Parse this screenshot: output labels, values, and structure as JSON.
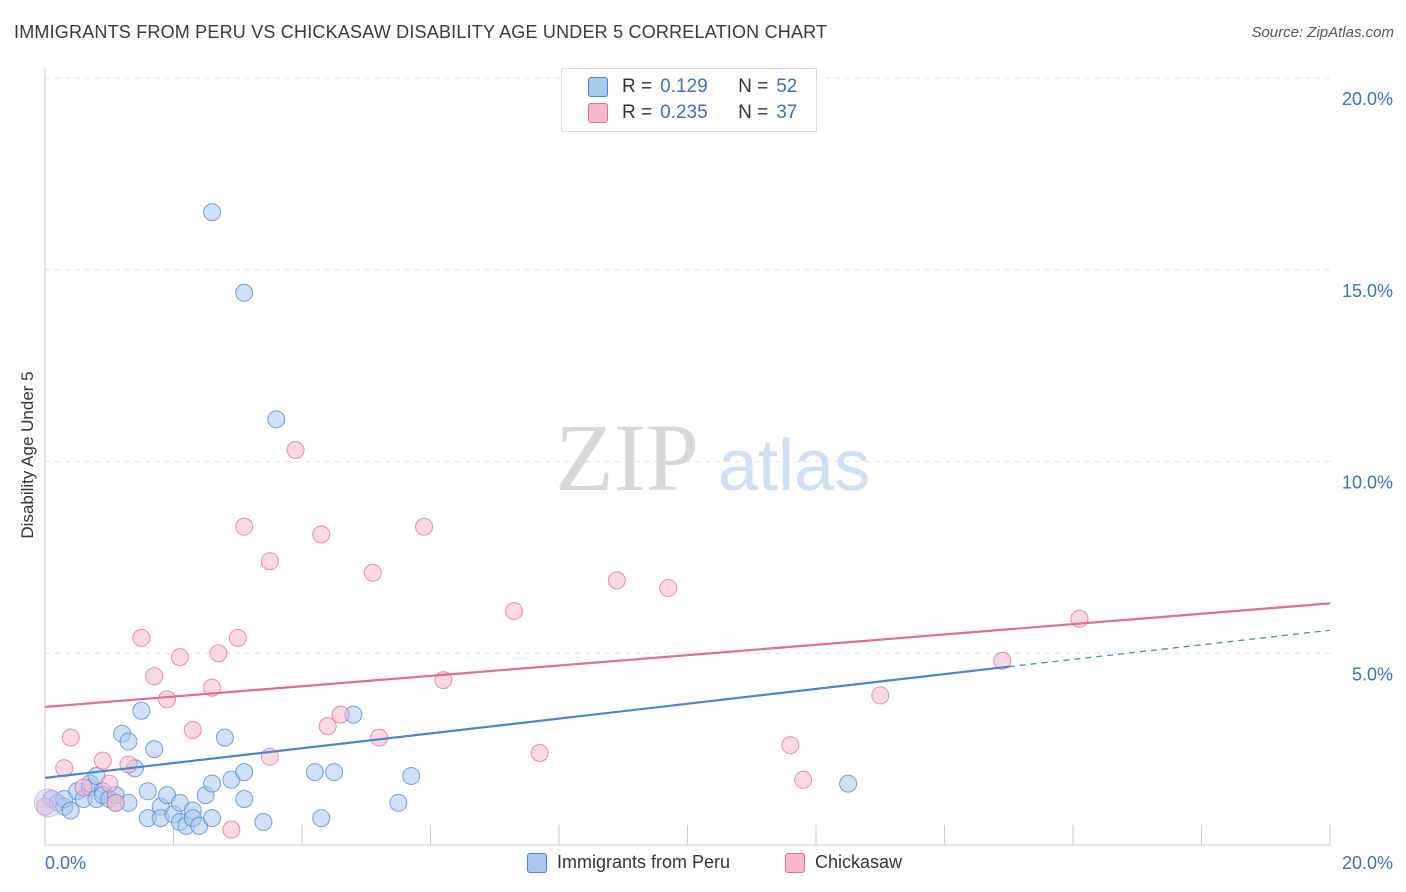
{
  "title": "IMMIGRANTS FROM PERU VS CHICKASAW DISABILITY AGE UNDER 5 CORRELATION CHART",
  "source": "Source: ZipAtlas.com",
  "watermark": {
    "zip": "ZIP",
    "atlas": "atlas"
  },
  "legend": {
    "rows": [
      {
        "r_label": "R =",
        "r_value": "0.129",
        "n_label": "N =",
        "n_value": "52",
        "color": "#a9c8f0"
      },
      {
        "r_label": "R =",
        "r_value": "0.235",
        "n_label": "N =",
        "n_value": "37",
        "color": "#f7b8cc"
      }
    ]
  },
  "bottom_legend": [
    "Immigrants from Peru",
    "Chickasaw"
  ],
  "chart_data": {
    "type": "scatter",
    "xlabel": "",
    "ylabel": "Disability Age Under 5",
    "xlim": [
      0,
      20
    ],
    "ylim": [
      0,
      20
    ],
    "x_tick_labels": [
      "0.0%",
      "20.0%"
    ],
    "y_tick_labels": [
      "5.0%",
      "10.0%",
      "15.0%",
      "20.0%"
    ],
    "y_ticks": [
      5,
      10,
      15,
      20
    ],
    "grid": true,
    "series": [
      {
        "name": "Immigrants from Peru",
        "color": "#4a86d4",
        "fill": "#a9c8f0",
        "trend": {
          "x0": 0,
          "y0": 1.75,
          "x1": 15,
          "y1": 4.65,
          "dash_to_x": 20,
          "dash_to_y": 5.6
        },
        "points": [
          [
            0.1,
            1.2
          ],
          [
            0.2,
            1.1
          ],
          [
            0.3,
            1.0
          ],
          [
            0.3,
            1.2
          ],
          [
            0.4,
            0.9
          ],
          [
            0.5,
            1.4
          ],
          [
            0.6,
            1.2
          ],
          [
            0.7,
            1.5
          ],
          [
            0.7,
            1.6
          ],
          [
            0.8,
            1.8
          ],
          [
            0.8,
            1.2
          ],
          [
            0.9,
            1.4
          ],
          [
            0.9,
            1.3
          ],
          [
            1.0,
            1.2
          ],
          [
            1.1,
            1.3
          ],
          [
            1.1,
            1.1
          ],
          [
            1.2,
            2.9
          ],
          [
            1.3,
            2.7
          ],
          [
            1.3,
            1.1
          ],
          [
            1.4,
            2.0
          ],
          [
            1.5,
            3.5
          ],
          [
            1.6,
            1.4
          ],
          [
            1.6,
            0.7
          ],
          [
            1.7,
            2.5
          ],
          [
            1.8,
            1.0
          ],
          [
            1.8,
            0.7
          ],
          [
            1.9,
            1.3
          ],
          [
            2.0,
            0.8
          ],
          [
            2.1,
            1.1
          ],
          [
            2.1,
            0.6
          ],
          [
            2.2,
            0.5
          ],
          [
            2.3,
            0.9
          ],
          [
            2.3,
            0.7
          ],
          [
            2.4,
            0.5
          ],
          [
            2.5,
            1.3
          ],
          [
            2.6,
            1.6
          ],
          [
            2.6,
            0.7
          ],
          [
            2.8,
            2.8
          ],
          [
            2.9,
            1.7
          ],
          [
            3.1,
            1.9
          ],
          [
            3.1,
            1.2
          ],
          [
            3.4,
            0.6
          ],
          [
            2.6,
            16.5
          ],
          [
            3.1,
            14.4
          ],
          [
            3.6,
            11.1
          ],
          [
            4.2,
            1.9
          ],
          [
            4.3,
            0.7
          ],
          [
            4.5,
            1.9
          ],
          [
            4.8,
            3.4
          ],
          [
            5.5,
            1.1
          ],
          [
            5.7,
            1.8
          ],
          [
            12.5,
            1.6
          ]
        ]
      },
      {
        "name": "Chickasaw",
        "color": "#e36b95",
        "fill": "#f7b8cc",
        "trend": {
          "x0": 0,
          "y0": 3.6,
          "x1": 20,
          "y1": 6.3
        },
        "points": [
          [
            0.0,
            1.0
          ],
          [
            0.3,
            2.0
          ],
          [
            0.4,
            2.8
          ],
          [
            0.6,
            1.5
          ],
          [
            0.9,
            2.2
          ],
          [
            1.1,
            1.1
          ],
          [
            1.3,
            2.1
          ],
          [
            1.5,
            5.4
          ],
          [
            1.7,
            4.4
          ],
          [
            1.9,
            3.8
          ],
          [
            2.1,
            4.9
          ],
          [
            2.3,
            3.0
          ],
          [
            2.6,
            4.1
          ],
          [
            2.7,
            5.0
          ],
          [
            2.9,
            0.4
          ],
          [
            3.0,
            5.4
          ],
          [
            3.1,
            8.3
          ],
          [
            3.5,
            2.3
          ],
          [
            3.5,
            7.4
          ],
          [
            3.9,
            10.3
          ],
          [
            4.3,
            8.1
          ],
          [
            4.4,
            3.1
          ],
          [
            4.6,
            3.4
          ],
          [
            5.1,
            7.1
          ],
          [
            5.2,
            2.8
          ],
          [
            5.9,
            8.3
          ],
          [
            6.2,
            4.3
          ],
          [
            7.3,
            6.1
          ],
          [
            7.7,
            2.4
          ],
          [
            8.9,
            6.9
          ],
          [
            9.7,
            6.7
          ],
          [
            11.6,
            2.6
          ],
          [
            11.8,
            1.7
          ],
          [
            13.0,
            3.9
          ],
          [
            14.9,
            4.8
          ],
          [
            16.1,
            5.9
          ],
          [
            1.0,
            1.6
          ]
        ]
      }
    ]
  }
}
